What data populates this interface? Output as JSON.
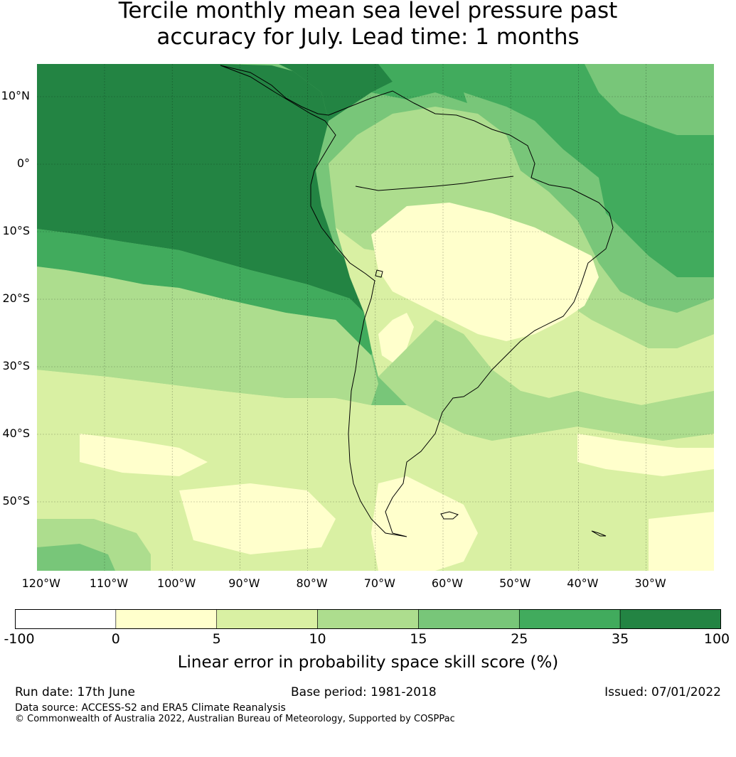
{
  "title_line1": "Tercile monthly mean sea level pressure past",
  "title_line2": "accuracy for July. Lead time: 1 months",
  "map": {
    "lat_labels": [
      {
        "text": "10°N",
        "lat": 10
      },
      {
        "text": "0°",
        "lat": 0
      },
      {
        "text": "10°S",
        "lat": -10
      },
      {
        "text": "20°S",
        "lat": -20
      },
      {
        "text": "30°S",
        "lat": -30
      },
      {
        "text": "40°S",
        "lat": -40
      },
      {
        "text": "50°S",
        "lat": -50
      }
    ],
    "lon_labels": [
      {
        "text": "120°W",
        "lon": -120
      },
      {
        "text": "110°W",
        "lon": -110
      },
      {
        "text": "100°W",
        "lon": -100
      },
      {
        "text": "90°W",
        "lon": -90
      },
      {
        "text": "80°W",
        "lon": -80
      },
      {
        "text": "70°W",
        "lon": -70
      },
      {
        "text": "60°W",
        "lon": -60
      },
      {
        "text": "50°W",
        "lon": -50
      },
      {
        "text": "40°W",
        "lon": -40
      },
      {
        "text": "30°W",
        "lon": -30
      }
    ],
    "lon_range": [
      -120,
      -20
    ],
    "lat_range": [
      -60,
      15
    ],
    "gridlines": true
  },
  "colorbar": {
    "ticks": [
      "-100",
      "0",
      "5",
      "10",
      "15",
      "25",
      "35",
      "100"
    ],
    "colors": [
      "#ffffff",
      "#ffffcc",
      "#d9f0a3",
      "#addd8e",
      "#78c679",
      "#41ab5d",
      "#238443"
    ],
    "label": "Linear error in probability space skill score (%)"
  },
  "footer": {
    "run_date": "Run date: 17th June",
    "base_period": "Base period: 1981-2018",
    "issued": "Issued: 07/01/2022",
    "data_source": "Data source: ACCESS-S2 and ERA5 Climate Reanalysis",
    "copyright": "© Commonwealth of Australia 2022, Australian Bureau of Meteorology, Supported by COSPPac"
  }
}
